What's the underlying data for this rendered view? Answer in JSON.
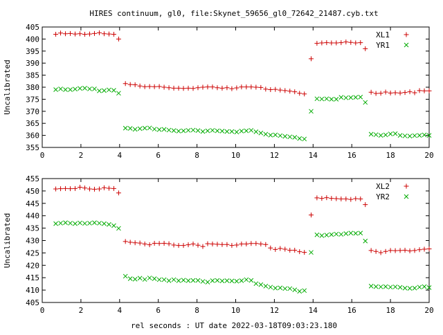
{
  "title": "HIRES continuum, gl0, file:Skynet_59656_gl0_72642_21487.cyb.txt",
  "xlabel": "rel seconds : UT date 2022-03-18T09:03:23.180",
  "chart_data": [
    {
      "type": "scatter",
      "ylabel": "Uncalibrated",
      "xlim": [
        0,
        20
      ],
      "ylim": [
        355,
        405
      ],
      "x_ticks": [
        "0",
        "2",
        "4",
        "6",
        "8",
        "10",
        "12",
        "14",
        "16",
        "18",
        "20"
      ],
      "y_ticks": [
        "355",
        "360",
        "365",
        "370",
        "375",
        "380",
        "385",
        "390",
        "395",
        "400",
        "405"
      ],
      "legend_position": "top-right",
      "grid": false,
      "series": [
        {
          "name": "XL1",
          "marker": "plus",
          "color": "#cc0000",
          "x": [
            0.7,
            0.95,
            1.2,
            1.45,
            1.7,
            1.95,
            2.2,
            2.45,
            2.7,
            2.95,
            3.2,
            3.45,
            3.7,
            3.95,
            4.3,
            4.55,
            4.8,
            5.05,
            5.3,
            5.55,
            5.8,
            6.05,
            6.3,
            6.55,
            6.8,
            7.05,
            7.3,
            7.55,
            7.8,
            8.05,
            8.3,
            8.55,
            8.8,
            9.05,
            9.3,
            9.55,
            9.8,
            10.05,
            10.3,
            10.55,
            10.8,
            11.05,
            11.3,
            11.55,
            11.8,
            12.05,
            12.3,
            12.55,
            12.8,
            13.05,
            13.3,
            13.55,
            13.9,
            14.2,
            14.45,
            14.7,
            14.95,
            15.2,
            15.45,
            15.7,
            15.95,
            16.2,
            16.45,
            16.7,
            17.0,
            17.25,
            17.5,
            17.75,
            18.0,
            18.25,
            18.5,
            18.75,
            19.0,
            19.25,
            19.5,
            19.75,
            20.0
          ],
          "y": [
            402,
            402.5,
            402.2,
            402.3,
            402.1,
            402.2,
            402,
            402.1,
            402.3,
            402.6,
            402.2,
            402.1,
            402,
            400,
            381.5,
            381.1,
            381,
            380.5,
            380.2,
            380.3,
            380.2,
            380.3,
            380,
            379.8,
            379.6,
            379.6,
            379.5,
            379.6,
            379.5,
            379.8,
            380,
            380.1,
            380.1,
            379.8,
            379.6,
            379.8,
            379.4,
            379.7,
            380.1,
            380.1,
            380.1,
            380,
            379.9,
            379.2,
            379,
            379.1,
            378.8,
            378.6,
            378.4,
            378.1,
            377.5,
            377.2,
            391.8,
            398.2,
            398.4,
            398.5,
            398.4,
            398.4,
            398.5,
            398.8,
            398.6,
            398.4,
            398.5,
            396,
            377.9,
            377.4,
            377.5,
            378,
            377.6,
            377.7,
            377.6,
            377.8,
            378.1,
            377.7,
            378.6,
            378.5,
            378.5
          ]
        },
        {
          "name": "YR1",
          "marker": "cross",
          "color": "#00aa00",
          "x": [
            0.7,
            0.95,
            1.2,
            1.45,
            1.7,
            1.95,
            2.2,
            2.45,
            2.7,
            2.95,
            3.2,
            3.45,
            3.7,
            3.95,
            4.3,
            4.55,
            4.8,
            5.05,
            5.3,
            5.55,
            5.8,
            6.05,
            6.3,
            6.55,
            6.8,
            7.05,
            7.3,
            7.55,
            7.8,
            8.05,
            8.3,
            8.55,
            8.8,
            9.05,
            9.3,
            9.55,
            9.8,
            10.05,
            10.3,
            10.55,
            10.8,
            11.05,
            11.3,
            11.55,
            11.8,
            12.05,
            12.3,
            12.55,
            12.8,
            13.05,
            13.3,
            13.55,
            13.9,
            14.2,
            14.45,
            14.7,
            14.95,
            15.2,
            15.45,
            15.7,
            15.95,
            16.2,
            16.45,
            16.7,
            17.0,
            17.25,
            17.5,
            17.75,
            18.0,
            18.25,
            18.5,
            18.75,
            19.0,
            19.25,
            19.5,
            19.75,
            20.0
          ],
          "y": [
            379,
            379.3,
            379,
            379,
            379.2,
            379.5,
            379.6,
            379.3,
            379.3,
            378.5,
            378.6,
            378.9,
            378.7,
            377.5,
            363,
            362.9,
            362.5,
            362.8,
            363,
            363.1,
            362.6,
            362.4,
            362.5,
            362.2,
            362,
            361.8,
            361.9,
            362.1,
            362.2,
            362,
            361.6,
            361.9,
            362.1,
            361.9,
            361.8,
            361.6,
            361.6,
            361.4,
            361.8,
            361.9,
            362.1,
            361.5,
            361,
            360.5,
            360.1,
            360.2,
            359.9,
            359.6,
            359.4,
            359.2,
            358.7,
            358.5,
            370,
            375.2,
            375.1,
            375.2,
            375,
            375,
            375.8,
            375.6,
            375.7,
            375.8,
            375.9,
            373.7,
            360.5,
            360.3,
            360,
            360.2,
            360.6,
            360.7,
            360,
            359.8,
            359.7,
            359.9,
            360,
            360.2,
            360
          ]
        }
      ]
    },
    {
      "type": "scatter",
      "ylabel": "Uncalibrated",
      "xlim": [
        0,
        20
      ],
      "ylim": [
        405,
        455
      ],
      "x_ticks": [
        "0",
        "2",
        "4",
        "6",
        "8",
        "10",
        "12",
        "14",
        "16",
        "18",
        "20"
      ],
      "y_ticks": [
        "405",
        "410",
        "415",
        "420",
        "425",
        "430",
        "435",
        "440",
        "445",
        "450",
        "455"
      ],
      "legend_position": "top-right",
      "grid": false,
      "series": [
        {
          "name": "XL2",
          "marker": "plus",
          "color": "#cc0000",
          "x": [
            0.7,
            0.95,
            1.2,
            1.45,
            1.7,
            1.95,
            2.2,
            2.45,
            2.7,
            2.95,
            3.2,
            3.45,
            3.7,
            3.95,
            4.3,
            4.55,
            4.8,
            5.05,
            5.3,
            5.55,
            5.8,
            6.05,
            6.3,
            6.55,
            6.8,
            7.05,
            7.3,
            7.55,
            7.8,
            8.05,
            8.3,
            8.55,
            8.8,
            9.05,
            9.3,
            9.55,
            9.8,
            10.05,
            10.3,
            10.55,
            10.8,
            11.05,
            11.3,
            11.55,
            11.8,
            12.05,
            12.3,
            12.55,
            12.8,
            13.05,
            13.3,
            13.55,
            13.9,
            14.2,
            14.45,
            14.7,
            14.95,
            15.2,
            15.45,
            15.7,
            15.95,
            16.2,
            16.45,
            16.7,
            17.0,
            17.25,
            17.5,
            17.75,
            18.0,
            18.25,
            18.5,
            18.75,
            19.0,
            19.25,
            19.5,
            19.75,
            20.0
          ],
          "y": [
            450.8,
            450.9,
            451,
            450.9,
            451,
            451.5,
            451.2,
            450.8,
            450.7,
            450.8,
            451.3,
            451.1,
            451,
            449.2,
            429.6,
            429.3,
            429.1,
            429,
            428.6,
            428.3,
            428.9,
            428.8,
            428.9,
            428.7,
            428.2,
            428,
            428,
            428.3,
            428.6,
            428.1,
            427.6,
            428.7,
            428.6,
            428.5,
            428.4,
            428.4,
            428,
            428.2,
            428.6,
            428.6,
            428.8,
            428.8,
            428.6,
            428.4,
            427,
            426.4,
            426.8,
            426.5,
            426.1,
            426.1,
            425.5,
            425.2,
            440.3,
            447.2,
            447,
            447.3,
            447,
            446.9,
            446.8,
            446.8,
            446.6,
            446.9,
            446.8,
            444.5,
            426,
            425.6,
            425.1,
            425.6,
            426,
            425.9,
            426,
            426.1,
            425.8,
            426,
            426.3,
            426.5,
            426.6
          ]
        },
        {
          "name": "YR2",
          "marker": "cross",
          "color": "#00aa00",
          "x": [
            0.7,
            0.95,
            1.2,
            1.45,
            1.7,
            1.95,
            2.2,
            2.45,
            2.7,
            2.95,
            3.2,
            3.45,
            3.7,
            3.95,
            4.3,
            4.55,
            4.8,
            5.05,
            5.3,
            5.55,
            5.8,
            6.05,
            6.3,
            6.55,
            6.8,
            7.05,
            7.3,
            7.55,
            7.8,
            8.05,
            8.3,
            8.55,
            8.8,
            9.05,
            9.3,
            9.55,
            9.8,
            10.05,
            10.3,
            10.55,
            10.8,
            11.05,
            11.3,
            11.55,
            11.8,
            12.05,
            12.3,
            12.55,
            12.8,
            13.05,
            13.3,
            13.55,
            13.9,
            14.2,
            14.45,
            14.7,
            14.95,
            15.2,
            15.45,
            15.7,
            15.95,
            16.2,
            16.45,
            16.7,
            17.0,
            17.25,
            17.5,
            17.75,
            18.0,
            18.25,
            18.5,
            18.75,
            19.0,
            19.25,
            19.5,
            19.75,
            20.0
          ],
          "y": [
            436.8,
            437,
            437.2,
            437,
            436.8,
            437.1,
            436.9,
            437,
            437.2,
            437,
            436.8,
            436.5,
            436,
            434.9,
            415.6,
            414.6,
            414.4,
            414.8,
            414.3,
            414.9,
            414.6,
            414.2,
            414.2,
            413.8,
            414.2,
            413.8,
            414,
            413.8,
            413.9,
            413.9,
            413.5,
            413.2,
            413.8,
            413.9,
            413.7,
            413.8,
            413.7,
            413.6,
            413.8,
            414.2,
            413.9,
            412.6,
            412.2,
            411.6,
            411.2,
            410.8,
            410.9,
            410.6,
            410.6,
            410.1,
            409.5,
            409.8,
            425.2,
            432.3,
            432,
            432.2,
            432.4,
            432.6,
            432.5,
            432.8,
            433,
            432.9,
            433,
            429.8,
            411.6,
            411.4,
            411.3,
            411.4,
            411.2,
            411.3,
            411.1,
            410.8,
            410.7,
            410.8,
            411.2,
            411.4,
            411
          ]
        }
      ]
    }
  ]
}
